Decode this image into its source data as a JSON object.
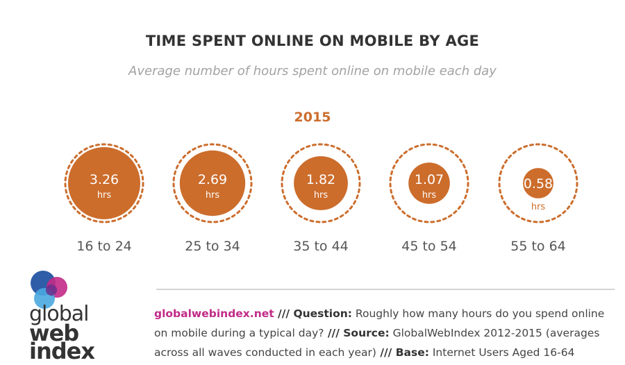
{
  "chart_data": {
    "type": "bubble",
    "title": "TIME SPENT ONLINE ON MOBILE BY AGE",
    "subtitle": "Average number of hours spent online on mobile each day",
    "year": "2015",
    "unit": "hrs",
    "categories": [
      "16 to 24",
      "25 to 34",
      "35 to 44",
      "45 to 54",
      "55 to 64"
    ],
    "values": [
      3.26,
      2.69,
      1.82,
      1.07,
      0.58
    ],
    "value_labels": [
      "3.26",
      "2.69",
      "1.82",
      "1.07",
      "0.58"
    ],
    "colors": {
      "fill": "#cc6d2c",
      "value_text": "#ffffff",
      "category_text": "#555555"
    }
  },
  "footer": {
    "site": "globalwebindex.net",
    "sep1": " /// ",
    "question_label": "Question:",
    "question_text": " Roughly how many hours do you spend online on mobile during a typical day?",
    "sep2": " /// ",
    "source_label": "Source:",
    "source_text": " GlobalWebIndex 2012-2015 (averages across all waves conducted in each year)",
    "sep3": " /// ",
    "base_label": "Base:",
    "base_text": " Internet Users Aged 16-64"
  },
  "logo": {
    "line1": "global",
    "line2": "web",
    "line3": "index",
    "colors": {
      "blue": "#1e4fa0",
      "magenta": "#c22a87",
      "cyan": "#4aa8e0",
      "purple": "#6a2f8c"
    }
  }
}
